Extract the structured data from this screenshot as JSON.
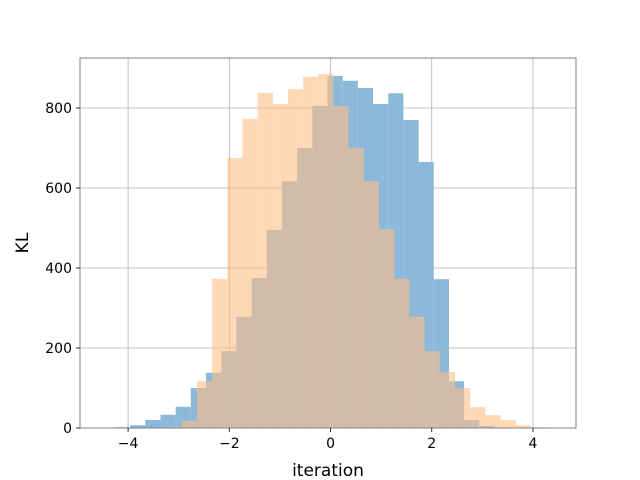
{
  "chart_data": {
    "type": "bar",
    "xlabel": "iteration",
    "ylabel": "KL",
    "xlim": [
      -4.95,
      4.85
    ],
    "ylim": [
      0,
      925
    ],
    "grid": true,
    "xticks": [
      -4,
      -2,
      0,
      2,
      4
    ],
    "xtick_labels": [
      "−4",
      "−2",
      "0",
      "2",
      "4"
    ],
    "yticks": [
      0,
      200,
      400,
      600,
      800
    ],
    "ytick_labels": [
      "0",
      "200",
      "400",
      "600",
      "800"
    ],
    "series": [
      {
        "color": "#8cb9da",
        "bins": [
          {
            "x0": -4.25,
            "x1": -3.96,
            "value": 2
          },
          {
            "x0": -3.96,
            "x1": -3.66,
            "value": 7
          },
          {
            "x0": -3.66,
            "x1": -3.36,
            "value": 20
          },
          {
            "x0": -3.36,
            "x1": -3.06,
            "value": 33
          },
          {
            "x0": -3.06,
            "x1": -2.76,
            "value": 53
          },
          {
            "x0": -2.76,
            "x1": -2.46,
            "value": 100
          },
          {
            "x0": -2.46,
            "x1": -2.16,
            "value": 138
          },
          {
            "x0": -2.16,
            "x1": -1.86,
            "value": 192
          },
          {
            "x0": -1.86,
            "x1": -1.56,
            "value": 278
          },
          {
            "x0": -1.56,
            "x1": -1.26,
            "value": 375
          },
          {
            "x0": -1.26,
            "x1": -0.96,
            "value": 495
          },
          {
            "x0": -0.96,
            "x1": -0.66,
            "value": 617
          },
          {
            "x0": -0.66,
            "x1": -0.36,
            "value": 700
          },
          {
            "x0": -0.36,
            "x1": -0.06,
            "value": 805
          },
          {
            "x0": -0.06,
            "x1": 0.24,
            "value": 880
          },
          {
            "x0": 0.24,
            "x1": 0.54,
            "value": 868
          },
          {
            "x0": 0.54,
            "x1": 0.84,
            "value": 850
          },
          {
            "x0": 0.84,
            "x1": 1.14,
            "value": 810
          },
          {
            "x0": 1.14,
            "x1": 1.44,
            "value": 837
          },
          {
            "x0": 1.44,
            "x1": 1.74,
            "value": 770
          },
          {
            "x0": 1.74,
            "x1": 2.04,
            "value": 665
          },
          {
            "x0": 2.04,
            "x1": 2.34,
            "value": 372
          },
          {
            "x0": 2.34,
            "x1": 2.64,
            "value": 117
          },
          {
            "x0": 2.64,
            "x1": 2.94,
            "value": 20
          },
          {
            "x0": 2.94,
            "x1": 3.24,
            "value": 5
          }
        ]
      },
      {
        "color": "#ffbf86",
        "bins": [
          {
            "x0": -3.24,
            "x1": -2.94,
            "value": 3
          },
          {
            "x0": -2.94,
            "x1": -2.64,
            "value": 18
          },
          {
            "x0": -2.64,
            "x1": -2.34,
            "value": 117
          },
          {
            "x0": -2.34,
            "x1": -2.04,
            "value": 373
          },
          {
            "x0": -2.04,
            "x1": -1.74,
            "value": 675
          },
          {
            "x0": -1.74,
            "x1": -1.44,
            "value": 773
          },
          {
            "x0": -1.44,
            "x1": -1.14,
            "value": 838
          },
          {
            "x0": -1.14,
            "x1": -0.84,
            "value": 810
          },
          {
            "x0": -0.84,
            "x1": -0.54,
            "value": 847
          },
          {
            "x0": -0.54,
            "x1": -0.24,
            "value": 878
          },
          {
            "x0": -0.24,
            "x1": 0.06,
            "value": 885
          },
          {
            "x0": 0.06,
            "x1": 0.36,
            "value": 805
          },
          {
            "x0": 0.36,
            "x1": 0.66,
            "value": 700
          },
          {
            "x0": 0.66,
            "x1": 0.96,
            "value": 617
          },
          {
            "x0": 0.96,
            "x1": 1.26,
            "value": 497
          },
          {
            "x0": 1.26,
            "x1": 1.56,
            "value": 373
          },
          {
            "x0": 1.56,
            "x1": 1.86,
            "value": 278
          },
          {
            "x0": 1.86,
            "x1": 2.16,
            "value": 192
          },
          {
            "x0": 2.16,
            "x1": 2.46,
            "value": 140
          },
          {
            "x0": 2.46,
            "x1": 2.76,
            "value": 100
          },
          {
            "x0": 2.76,
            "x1": 3.06,
            "value": 52
          },
          {
            "x0": 3.06,
            "x1": 3.36,
            "value": 32
          },
          {
            "x0": 3.36,
            "x1": 3.66,
            "value": 20
          },
          {
            "x0": 3.66,
            "x1": 3.96,
            "value": 7
          },
          {
            "x0": 3.96,
            "x1": 4.26,
            "value": 2
          }
        ]
      }
    ]
  }
}
